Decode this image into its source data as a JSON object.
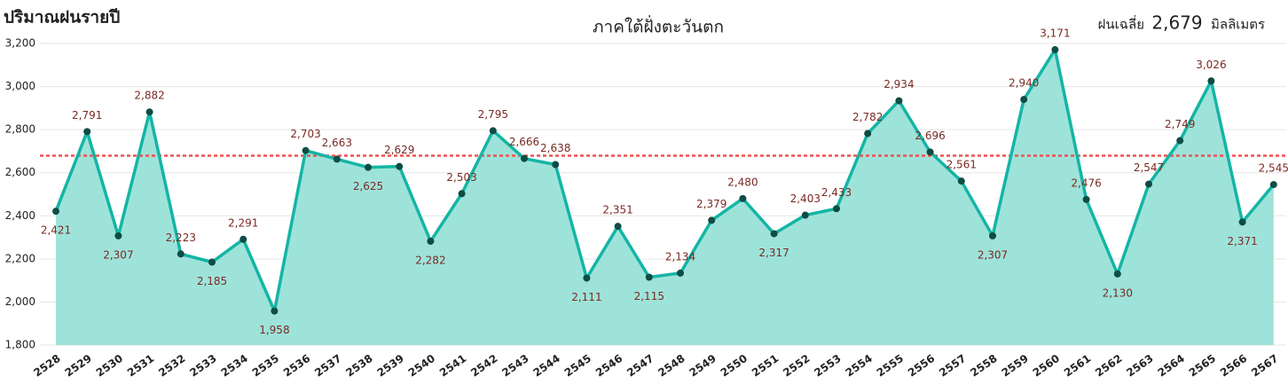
{
  "chart_data": {
    "type": "area-line",
    "title": "ปริมาณฝนรายปี",
    "subtitle": "ภาคใต้ฝั่งตะวันตก",
    "categories": [
      "2528",
      "2529",
      "2530",
      "2531",
      "2532",
      "2533",
      "2534",
      "2535",
      "2536",
      "2537",
      "2538",
      "2539",
      "2540",
      "2541",
      "2542",
      "2543",
      "2544",
      "2545",
      "2546",
      "2547",
      "2548",
      "2549",
      "2550",
      "2551",
      "2552",
      "2553",
      "2554",
      "2555",
      "2556",
      "2557",
      "2558",
      "2559",
      "2560",
      "2561",
      "2562",
      "2563",
      "2564",
      "2565",
      "2566",
      "2567"
    ],
    "values": [
      2421,
      2791,
      2307,
      2882,
      2223,
      2185,
      2291,
      1958,
      2703,
      2663,
      2625,
      2629,
      2282,
      2503,
      2795,
      2666,
      2638,
      2111,
      2351,
      2115,
      2134,
      2379,
      2480,
      2317,
      2403,
      2433,
      2782,
      2934,
      2696,
      2561,
      2307,
      2940,
      3171,
      2476,
      2130,
      2547,
      2749,
      3026,
      2371,
      2545
    ],
    "value_labels": [
      "2,421",
      "2,791",
      "2,307",
      "2,882",
      "2,223",
      "2,185",
      "2,291",
      "1,958",
      "2,703",
      "2,663",
      "2,625",
      "2,629",
      "2,282",
      "2,503",
      "2,795",
      "2,666",
      "2,638",
      "2,111",
      "2,351",
      "2,115",
      "2,134",
      "2,379",
      "2,480",
      "2,317",
      "2,403",
      "2,433",
      "2,782",
      "2,934",
      "2,696",
      "2,561",
      "2,307",
      "2,940",
      "3,171",
      "2,476",
      "2,130",
      "2,547",
      "2,749",
      "3,026",
      "2,371",
      "2,545"
    ],
    "color": "#14b5a5",
    "fill_color": "#9ee3da",
    "marker_color": "#0e4d45",
    "ylim": [
      1800,
      3200
    ],
    "yticks": [
      {
        "value": 1800,
        "label": "1,800"
      },
      {
        "value": 2000,
        "label": "2,000"
      },
      {
        "value": 2200,
        "label": "2,200"
      },
      {
        "value": 2400,
        "label": "2,400"
      },
      {
        "value": 2600,
        "label": "2,600"
      },
      {
        "value": 2800,
        "label": "2,800"
      },
      {
        "value": 3000,
        "label": "3,000"
      },
      {
        "value": 3200,
        "label": "3,200"
      }
    ],
    "grid": true,
    "reference_line": {
      "name": "ฝนเฉลี่ย",
      "value": 2679,
      "label": "2,679",
      "unit": "มิลลิเมตร",
      "color": "#f05050"
    }
  }
}
